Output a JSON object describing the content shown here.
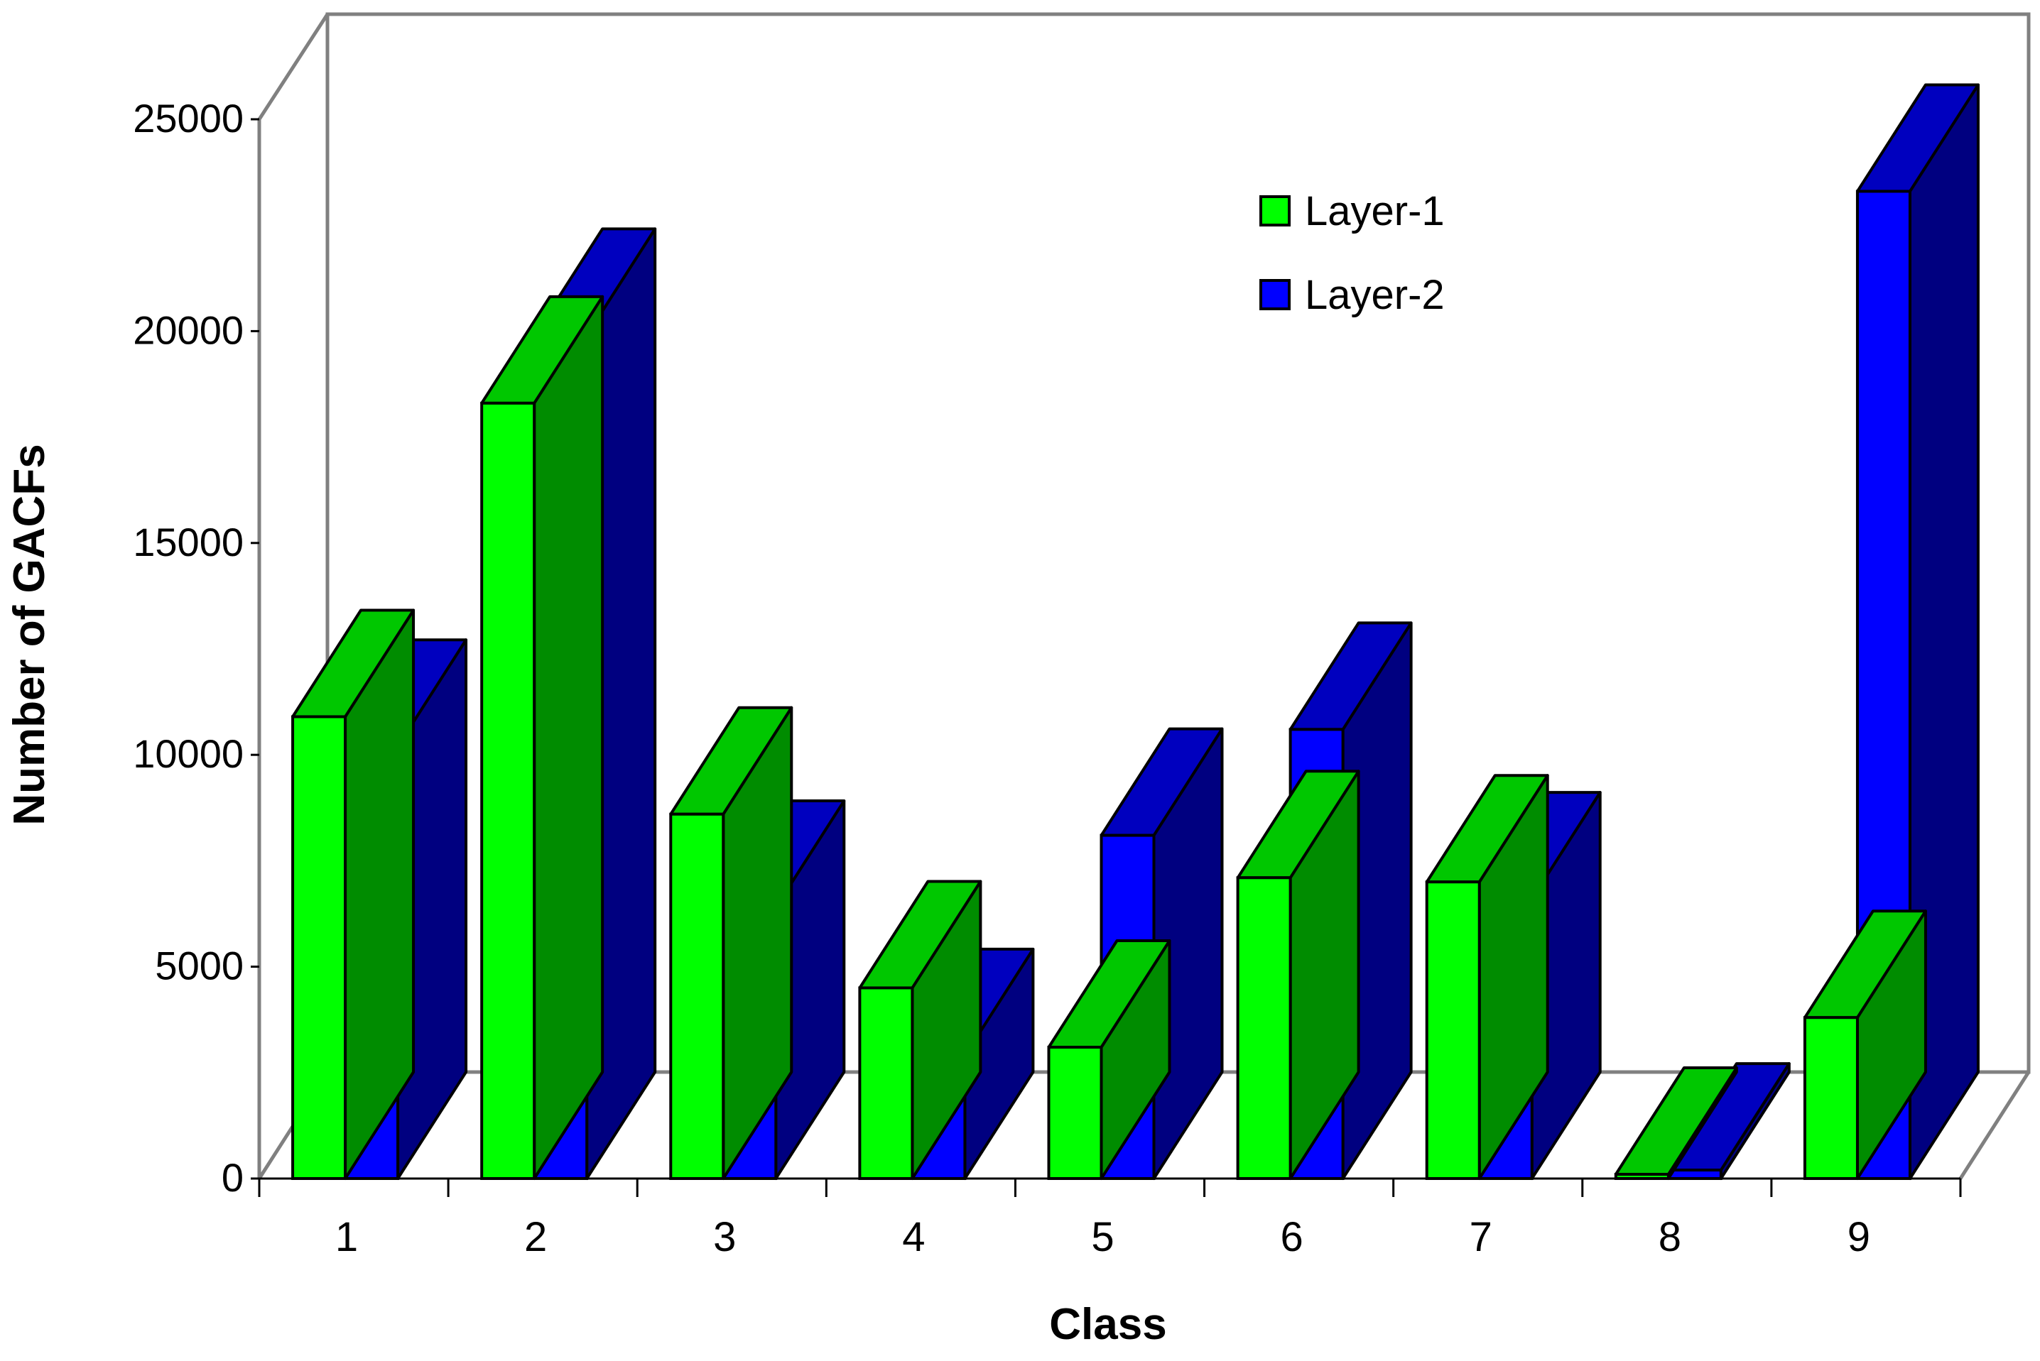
{
  "chart_data": {
    "type": "bar",
    "style": "3d-clustered",
    "title": "",
    "xlabel": "Class",
    "ylabel": "Number of GACFs",
    "categories": [
      "1",
      "2",
      "3",
      "4",
      "5",
      "6",
      "7",
      "8",
      "9"
    ],
    "series": [
      {
        "name": "Layer-1",
        "color": "#00ff00",
        "values": [
          10900,
          18300,
          8600,
          4500,
          3100,
          7100,
          7000,
          100,
          3800
        ]
      },
      {
        "name": "Layer-2",
        "color": "#0000ff",
        "values": [
          10200,
          19900,
          6400,
          2900,
          8100,
          10600,
          6600,
          200,
          23300
        ]
      }
    ],
    "ylim": [
      0,
      25000
    ],
    "yticks": [
      "0",
      "5000",
      "10000",
      "15000",
      "20000",
      "25000"
    ],
    "grid": false,
    "legend_position": "top-right"
  }
}
